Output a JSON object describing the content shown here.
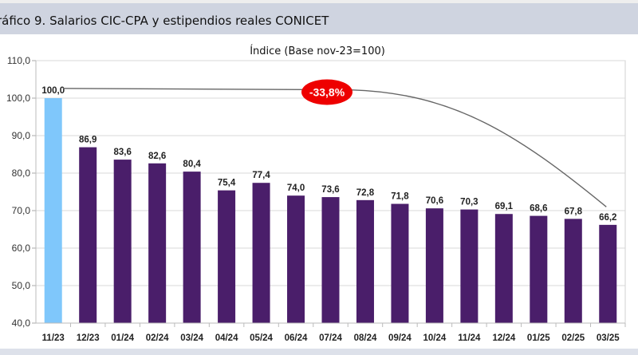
{
  "header": {
    "title": "ráfico 9. Salarios CIC-CPA y estipendios reales CONICET"
  },
  "chart_data": {
    "type": "bar",
    "title": "Índice (Base nov-23=100)",
    "xlabel": "",
    "ylabel": "",
    "ylim": [
      40,
      110
    ],
    "yticks": [
      40,
      50,
      60,
      70,
      80,
      90,
      100,
      110
    ],
    "ytick_labels": [
      "40,0",
      "50,0",
      "60,0",
      "70,0",
      "80,0",
      "90,0",
      "100,0",
      "110,0"
    ],
    "grid": true,
    "legend": "none",
    "categories": [
      "11/23",
      "12/23",
      "01/24",
      "02/24",
      "03/24",
      "04/24",
      "05/24",
      "06/24",
      "07/24",
      "08/24",
      "09/24",
      "10/24",
      "11/24",
      "12/24",
      "01/25",
      "02/25",
      "03/25"
    ],
    "values": [
      100.0,
      86.9,
      83.6,
      82.6,
      80.4,
      75.4,
      77.4,
      74.0,
      73.6,
      72.8,
      71.8,
      70.6,
      70.3,
      69.1,
      68.6,
      67.8,
      66.2
    ],
    "value_labels": [
      "100,0",
      "86,9",
      "83,6",
      "82,6",
      "80,4",
      "75,4",
      "77,4",
      "74,0",
      "73,6",
      "72,8",
      "71,8",
      "70,6",
      "70,3",
      "69,1",
      "68,6",
      "67,8",
      "66,2"
    ],
    "colors": {
      "base_bar": "#7fc7fb",
      "bar": "#4a1e6a",
      "annotation": "#ee0000",
      "trend_line": "#666666",
      "grid": "#d9d9d9"
    },
    "annotation": {
      "text": "-33,8%",
      "trend_from": "11/23",
      "trend_to": "03/25"
    }
  }
}
